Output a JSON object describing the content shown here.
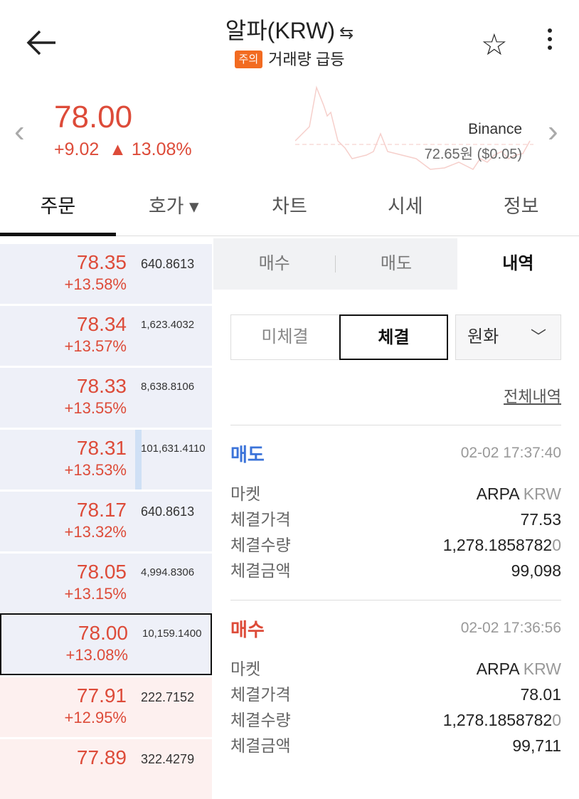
{
  "header": {
    "title": "알파(KRW)",
    "badge": "주의",
    "subtitle": "거래량 급등"
  },
  "ticker": {
    "price": "78.00",
    "change": "+9.02",
    "change_pct": "▲ 13.08%",
    "exchange": "Binance",
    "exchange_price": "72.65원 ($0.05)",
    "color_up": "#dd4b39"
  },
  "tabs": [
    {
      "label": "주문"
    },
    {
      "label": "호가 ▾"
    },
    {
      "label": "차트"
    },
    {
      "label": "시세"
    },
    {
      "label": "정보"
    }
  ],
  "orderbook": [
    {
      "price": "78.35",
      "pct": "+13.58%",
      "qty": "640.8613",
      "side": "ask"
    },
    {
      "price": "78.34",
      "pct": "+13.57%",
      "qty": "1,623.4032",
      "side": "ask"
    },
    {
      "price": "78.33",
      "pct": "+13.55%",
      "qty": "8,638.8106",
      "side": "ask"
    },
    {
      "price": "78.31",
      "pct": "+13.53%",
      "qty": "101,631.4110",
      "side": "ask"
    },
    {
      "price": "78.17",
      "pct": "+13.32%",
      "qty": "640.8613",
      "side": "ask"
    },
    {
      "price": "78.05",
      "pct": "+13.15%",
      "qty": "4,994.8306",
      "side": "ask"
    },
    {
      "price": "78.00",
      "pct": "+13.08%",
      "qty": "10,159.1400",
      "side": "ask"
    },
    {
      "price": "77.91",
      "pct": "+12.95%",
      "qty": "222.7152",
      "side": "bid"
    },
    {
      "price": "77.89",
      "pct": "",
      "qty": "322.4279",
      "side": "bid"
    }
  ],
  "order_tabs": [
    {
      "label": "매수"
    },
    {
      "label": "매도"
    },
    {
      "label": "내역"
    }
  ],
  "filters": {
    "unfilled": "미체결",
    "filled": "체결",
    "currency": "원화"
  },
  "all_history": "전체내역",
  "trades": [
    {
      "side": "매도",
      "date": "02-02 17:37:40",
      "labels": [
        "마켓",
        "체결가격",
        "체결수량",
        "체결금액"
      ],
      "market": "ARPA",
      "market_quote": "KRW",
      "price": "77.53",
      "qty": "1,278.1858782",
      "qty_tail": "0",
      "amount": "99,098"
    },
    {
      "side": "매수",
      "date": "02-02 17:36:56",
      "labels": [
        "마켓",
        "체결가격",
        "체결수량",
        "체결금액"
      ],
      "market": "ARPA",
      "market_quote": "KRW",
      "price": "78.01",
      "qty": "1,278.1858782",
      "qty_tail": "0",
      "amount": "99,711"
    }
  ]
}
